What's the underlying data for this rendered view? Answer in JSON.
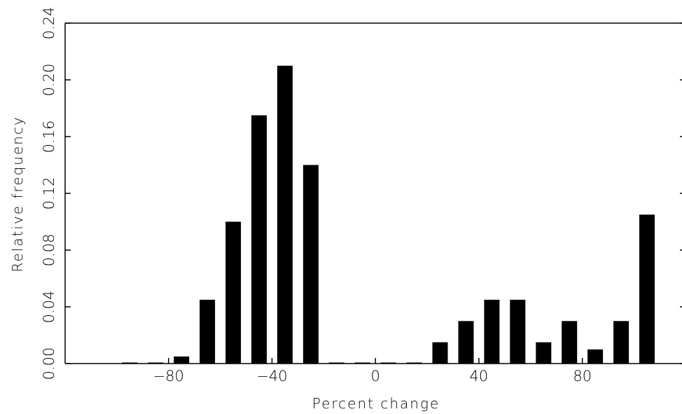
{
  "chart_data": {
    "type": "bar",
    "title": "",
    "xlabel": "Percent change",
    "ylabel": "Relative frequency",
    "x": [
      -95,
      -85,
      -75,
      -65,
      -55,
      -45,
      -35,
      -25,
      -15,
      -5,
      5,
      15,
      25,
      35,
      45,
      55,
      65,
      75,
      85,
      95,
      105
    ],
    "values": [
      0.0,
      0.0,
      0.005,
      0.045,
      0.1,
      0.175,
      0.21,
      0.14,
      0.0,
      0.0,
      0.0,
      0.0,
      0.015,
      0.03,
      0.045,
      0.045,
      0.015,
      0.03,
      0.01,
      0.03,
      0.105
    ],
    "xlim": [
      -120,
      118
    ],
    "ylim": [
      0,
      0.24
    ],
    "xticks": [
      -80,
      -40,
      0,
      40,
      80
    ],
    "xtick_labels": [
      "−80",
      "−40",
      "0",
      "40",
      "80"
    ],
    "yticks": [
      0,
      0.04,
      0.08,
      0.12,
      0.16,
      0.2,
      0.24
    ],
    "ytick_labels": [
      "0.00",
      "0.04",
      "0.08",
      "0.12",
      "0.16",
      "0.20",
      "0.24"
    ],
    "bar_color": "#000000",
    "grid": false,
    "legend": false
  }
}
